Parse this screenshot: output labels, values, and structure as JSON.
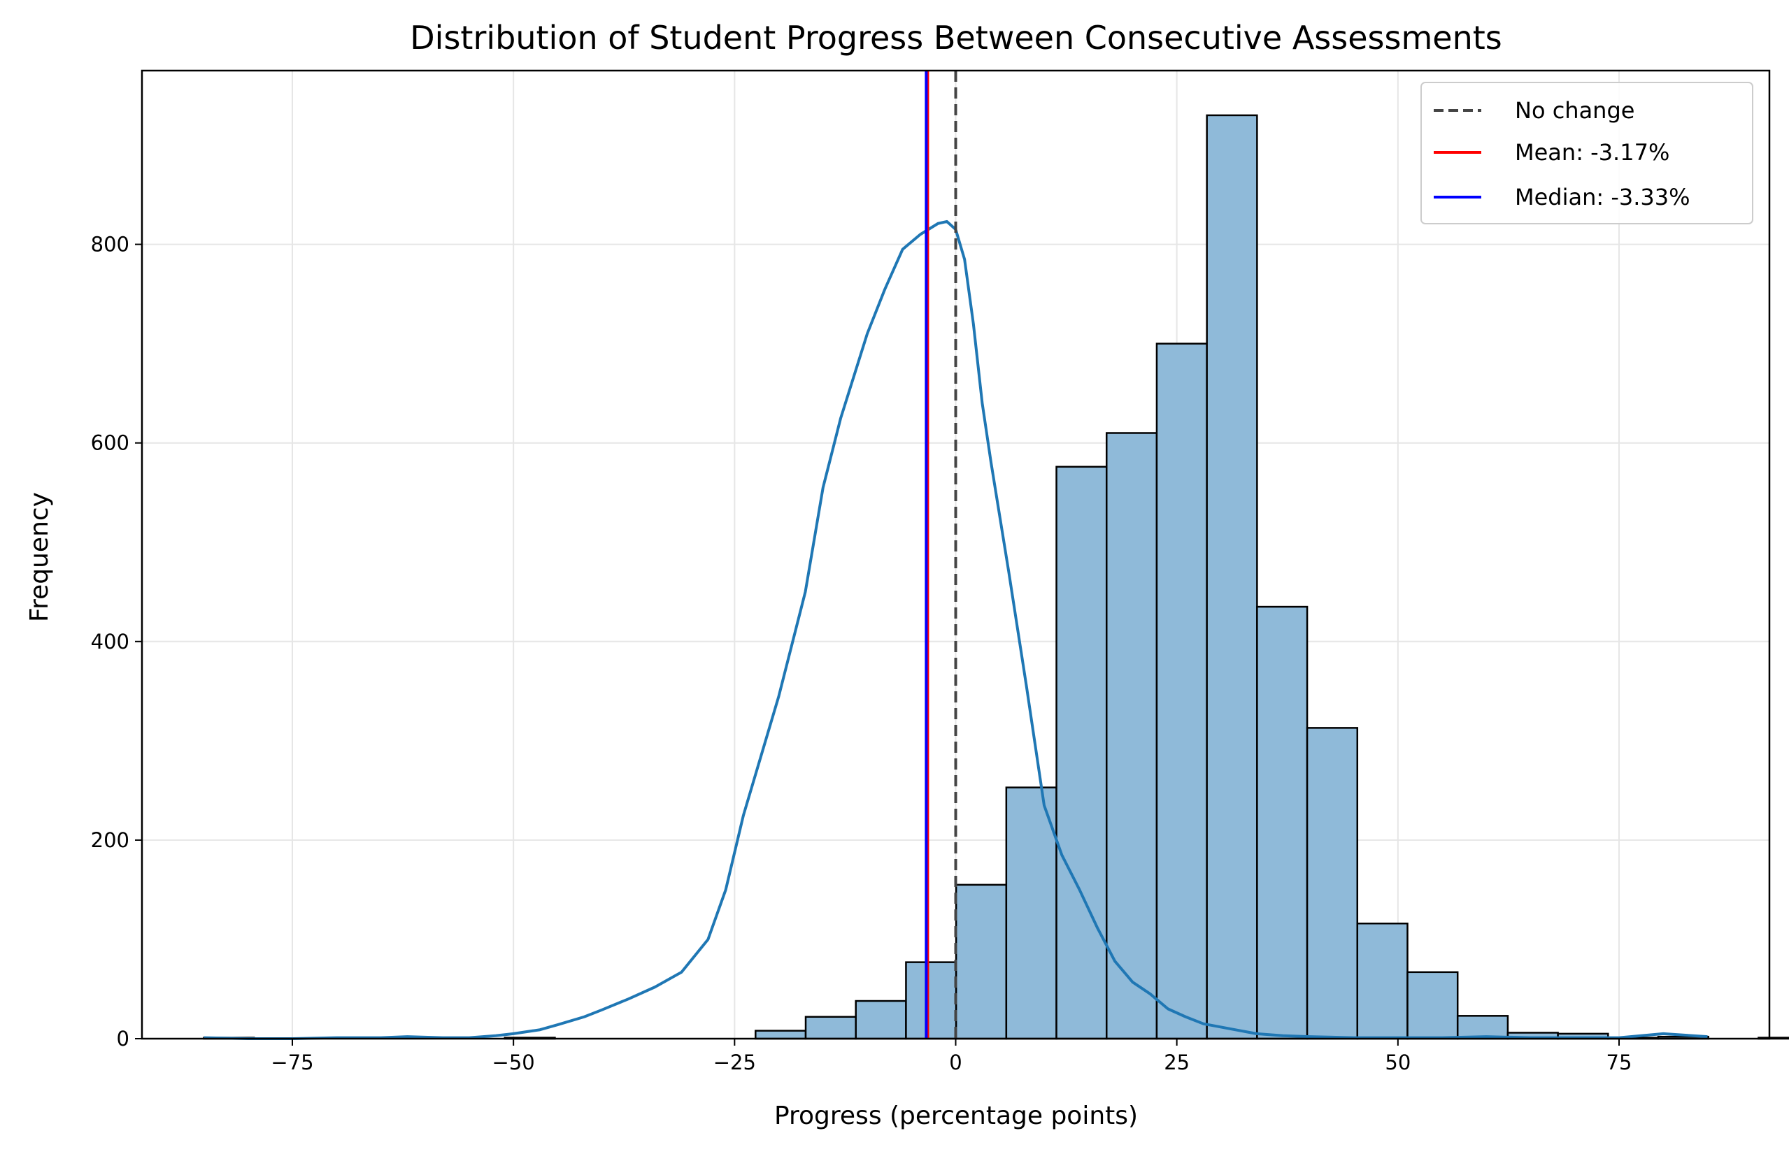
{
  "chart_data": {
    "type": "bar",
    "title": "Distribution of Student Progress Between Consecutive Assessments",
    "xlabel": "Progress (percentage points)",
    "ylabel": "Frequency",
    "xlim": [
      -92,
      92
    ],
    "ylim": [
      0,
      975
    ],
    "xticks": [
      -75,
      -50,
      -25,
      0,
      25,
      50,
      75
    ],
    "xtick_labels": [
      "−75",
      "−50",
      "−25",
      "0",
      "25",
      "50",
      "75"
    ],
    "yticks": [
      0,
      200,
      400,
      600,
      800
    ],
    "ytick_labels": [
      "0",
      "200",
      "400",
      "600",
      "800"
    ],
    "grid": true,
    "legend_position": "top-right",
    "bin_width": 5.67,
    "bin_start": -85,
    "values": [
      1,
      0,
      0,
      0,
      0,
      0,
      1,
      0,
      0,
      0,
      0,
      8,
      22,
      38,
      77,
      155,
      253,
      576,
      610,
      700,
      930,
      435,
      313,
      116,
      67,
      23,
      6,
      5,
      1,
      2,
      0,
      1,
      1,
      1,
      1,
      5
    ],
    "kde": {
      "x": [
        -85,
        -80,
        -75,
        -70,
        -65,
        -62,
        -58,
        -55,
        -52,
        -50,
        -47,
        -45,
        -42,
        -40,
        -37,
        -34,
        -31,
        -28,
        -26,
        -24,
        -22,
        -20,
        -17,
        -15,
        -13,
        -10,
        -8,
        -6,
        -4,
        -2,
        -1,
        0,
        1,
        2,
        3,
        4,
        6,
        8,
        10,
        12,
        14,
        16,
        18,
        20,
        22,
        24,
        26,
        28,
        31,
        34,
        37,
        40,
        45,
        50,
        55,
        60,
        65,
        70,
        75,
        80,
        85
      ],
      "y": [
        1,
        0,
        0,
        1,
        1,
        2,
        1,
        1,
        3,
        5,
        9,
        14,
        22,
        29,
        40,
        52,
        67,
        100,
        150,
        225,
        285,
        345,
        450,
        555,
        625,
        710,
        755,
        795,
        810,
        821,
        823,
        815,
        785,
        720,
        640,
        580,
        470,
        355,
        235,
        185,
        150,
        112,
        78,
        57,
        45,
        30,
        22,
        15,
        10,
        5,
        3,
        2,
        1,
        1,
        1,
        2,
        1,
        1,
        1,
        5,
        2
      ]
    },
    "series": [
      {
        "name": "No change",
        "value": 0,
        "color": "#444444",
        "style": "dashed"
      },
      {
        "name": "Mean: -3.17%",
        "value": -3.17,
        "color": "#ff0000",
        "style": "solid"
      },
      {
        "name": "Median: -3.33%",
        "value": -3.33,
        "color": "#0000ff",
        "style": "solid"
      }
    ],
    "colors": {
      "bar_fill": "#8fbad9",
      "bar_edge": "#000000",
      "kde": "#1f77b4",
      "grid": "#e6e6e6"
    }
  }
}
